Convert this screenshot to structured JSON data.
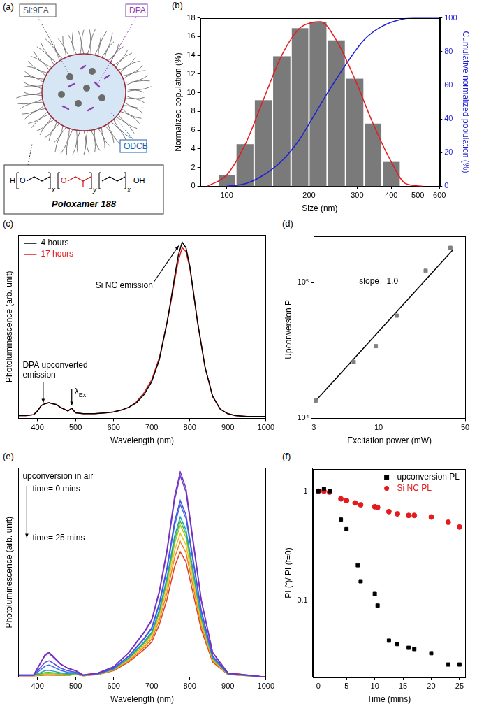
{
  "diagram": {
    "panel_label": "(a)",
    "labels": [
      "Si:9EA",
      "DPA",
      "ODCB"
    ],
    "polymer": "Poloxamer 188",
    "formula": {
      "start": "H",
      "groups": [
        {
          "atom": "O",
          "subscript": "x"
        },
        {
          "atom": "O",
          "subscript": "y"
        },
        {
          "subscript": "x"
        }
      ],
      "end": "OH"
    }
  },
  "chart_data": [
    {
      "panel_label": "(b)",
      "type": "histogram",
      "x_label": "Size (nm)",
      "y_label": "Normalized population (%)",
      "y2_label": "Cumulative normalized population (%)",
      "bins": [
        93,
        108,
        126,
        147,
        172,
        200,
        233,
        272,
        318,
        370,
        432
      ],
      "values": [
        1.2,
        4.5,
        9.2,
        13.9,
        16.9,
        17.6,
        15.6,
        11.5,
        6.7,
        2.6
      ],
      "color": "#7a7a7a",
      "series": [
        {
          "type": "line",
          "color": "#e41a1c",
          "x": [
            85,
            100,
            117,
            136,
            159,
            185,
            205,
            220,
            252,
            294,
            343,
            400,
            450,
            520
          ],
          "values": [
            0,
            1.2,
            4.5,
            9.2,
            14,
            16.9,
            17.5,
            17.6,
            15.6,
            11.5,
            6.7,
            2.6,
            0.3,
            0
          ]
        },
        {
          "type": "line",
          "color": "#1f1fd6",
          "axis": "y2",
          "x": [
            100,
            117,
            136,
            159,
            185,
            200,
            233,
            272,
            318,
            370,
            432,
            500,
            600
          ],
          "values": [
            0,
            1.5,
            6.5,
            15,
            28,
            37,
            55,
            72,
            87,
            95,
            99,
            100,
            100
          ]
        }
      ],
      "log": "x",
      "xlim": [
        80,
        600
      ],
      "xticks": [
        100,
        200,
        300,
        400,
        500,
        600
      ],
      "ylim": [
        0,
        18
      ],
      "yticks": [
        0,
        2,
        4,
        6,
        8,
        10,
        12,
        14,
        16,
        18
      ],
      "y2lim": [
        0,
        100
      ],
      "y2ticks": [
        0,
        20,
        40,
        60,
        80,
        100
      ],
      "grid": false
    },
    {
      "panel_label": "(c)",
      "type": "line",
      "x_label": "Wavelength (nm)",
      "y_label": "Photoluminescence (arb. unit)",
      "x": [
        350,
        370,
        390,
        400,
        410,
        420,
        430,
        440,
        450,
        460,
        470,
        480,
        490,
        500,
        520,
        550,
        580,
        600,
        620,
        640,
        660,
        680,
        700,
        720,
        740,
        750,
        760,
        770,
        780,
        790,
        800,
        810,
        820,
        840,
        860,
        880,
        900,
        920,
        950,
        1000
      ],
      "series": [
        {
          "name": "4 hours",
          "color": "#000000",
          "values": [
            1.5,
            1.5,
            2,
            4,
            7,
            8,
            8.5,
            8,
            7.5,
            6,
            5,
            4,
            5.5,
            3,
            2.5,
            2.5,
            3,
            3.5,
            4.5,
            6,
            8.5,
            13,
            20,
            32,
            52,
            64,
            77,
            89,
            96,
            93,
            83,
            68,
            53,
            28,
            12,
            5,
            2.5,
            1.5,
            1,
            1
          ]
        },
        {
          "name": "17 hours",
          "color": "#e41a1c",
          "values": [
            1.5,
            1.5,
            2,
            4,
            7,
            8,
            8.5,
            8,
            7.5,
            6,
            5,
            4,
            5.5,
            3,
            2.5,
            2.5,
            3,
            3.5,
            4.5,
            6,
            9,
            14,
            21,
            33,
            52,
            63,
            75,
            86,
            93,
            91,
            82,
            68,
            53,
            28,
            12,
            5,
            2.5,
            1.5,
            1,
            1
          ]
        }
      ],
      "xlim": [
        350,
        1000
      ],
      "xticks": [
        400,
        500,
        600,
        700,
        800,
        900,
        1000
      ],
      "ylim": [
        0,
        100
      ],
      "tick_labels": "x",
      "grid": false,
      "legend": "upper left",
      "annotations": [
        {
          "text": "Si NC emission",
          "x": 780
        },
        {
          "text": "DPA upconverted emission",
          "x": 415
        },
        {
          "text": "λEx",
          "x": 490
        }
      ]
    },
    {
      "panel_label": "(d)",
      "type": "scatter",
      "x_label": "Excitation power (mW)",
      "y_label": "Upconversion PL",
      "series": [
        {
          "type": "scatter",
          "marker": "square",
          "color": "#808080",
          "x": [
            3.1,
            6.3,
            9.5,
            14,
            24,
            38
          ],
          "values": [
            13500,
            26000,
            34000,
            57000,
            122000,
            180000
          ]
        },
        {
          "type": "line",
          "line_style": "solid",
          "color": "#000000",
          "x": [
            3,
            40
          ],
          "values": [
            13000,
            175000
          ]
        }
      ],
      "log": true,
      "xlim": [
        3,
        50
      ],
      "xticks": [
        3,
        10,
        50
      ],
      "ylim": [
        10000,
        220000
      ],
      "yticks": [
        {
          "value": 10000,
          "label": "10⁴"
        },
        {
          "value": 100000,
          "label": "10⁵"
        }
      ],
      "grid": false,
      "annotations": [
        {
          "text": "slope= 1.0"
        }
      ]
    },
    {
      "panel_label": "(e)",
      "type": "line",
      "x_label": "Wavelength (nm)",
      "y_label": "Photoluminescence (arb. unit)",
      "x": [
        350,
        390,
        410,
        420,
        430,
        440,
        460,
        480,
        500,
        520,
        560,
        600,
        640,
        660,
        680,
        700,
        720,
        740,
        760,
        775,
        790,
        810,
        830,
        860,
        900,
        1000
      ],
      "series": [
        {
          "color": "#7b2fbe",
          "values": [
            1,
            1,
            7.6,
            10.9,
            12,
            10.4,
            6.5,
            4.3,
            3.1,
            1,
            2,
            5,
            12,
            17,
            22,
            28,
            42,
            62,
            88,
            100,
            92,
            65,
            38,
            12,
            2,
            0
          ]
        },
        {
          "color": "#6a3fd0",
          "values": [
            1,
            1,
            7.3,
            10.5,
            11.5,
            9.9,
            6.3,
            4.2,
            3.1,
            1,
            2,
            4.9,
            11.8,
            16.7,
            21.6,
            27.4,
            41.2,
            60.8,
            86.2,
            98,
            90.2,
            63.7,
            37.2,
            11.8,
            2,
            0
          ]
        },
        {
          "color": "#4f4fe0",
          "values": [
            0.9,
            0.9,
            5.1,
            7.2,
            7.9,
            6.9,
            4.4,
            3,
            2.4,
            0.9,
            1.7,
            4.3,
            10.3,
            14.6,
            18.9,
            24.1,
            36.1,
            53.3,
            75.7,
            86,
            79.1,
            55.9,
            32.7,
            10.3,
            1.7,
            0
          ]
        },
        {
          "color": "#3a6ee8",
          "values": [
            0.8,
            0.8,
            3.8,
            5.3,
            5.8,
            5.1,
            3.3,
            2.3,
            2.2,
            0.8,
            1.7,
            4.2,
            10.1,
            14.3,
            18.5,
            23.5,
            35.3,
            52.1,
            73.9,
            84,
            77.3,
            54.6,
            31.9,
            10.1,
            1.7,
            0
          ]
        },
        {
          "color": "#20a0c0",
          "values": [
            0.8,
            0.8,
            2.3,
            3.1,
            3.3,
            2.9,
            2.1,
            1.6,
            1.9,
            0.8,
            1.6,
            3.9,
            9.4,
            13.3,
            17.2,
            21.8,
            32.8,
            48.4,
            68.6,
            78,
            71.8,
            50.7,
            29.6,
            9.4,
            1.6,
            0
          ]
        },
        {
          "color": "#40c040",
          "values": [
            0.8,
            0.8,
            1.7,
            2.2,
            2.3,
            2.1,
            1.6,
            1.3,
            1.7,
            0.8,
            1.5,
            3.8,
            9.1,
            12.9,
            16.7,
            21.3,
            31.9,
            47.1,
            66.9,
            76,
            69.9,
            49.4,
            28.9,
            9.1,
            1.5,
            0
          ]
        },
        {
          "color": "#a8cc20",
          "values": [
            0.7,
            0.7,
            1.3,
            1.6,
            1.7,
            1.6,
            1.2,
            1,
            1.6,
            0.7,
            1.5,
            3.7,
            8.9,
            12.6,
            16.3,
            20.7,
            31.1,
            45.9,
            65.1,
            74,
            68.1,
            48.1,
            28.1,
            8.9,
            1.5,
            0
          ]
        },
        {
          "color": "#f0c020",
          "values": [
            0.7,
            0.7,
            1.1,
            1.2,
            1.3,
            1.2,
            1,
            0.9,
            1.5,
            0.7,
            1.4,
            3.5,
            8.4,
            11.9,
            15.4,
            19.6,
            29.4,
            43.4,
            61.6,
            70,
            64.4,
            45.5,
            26.6,
            8.4,
            1.4,
            0
          ]
        },
        {
          "color": "#f08020",
          "values": [
            0.7,
            0.7,
            0.9,
            1.1,
            1.1,
            1,
            0.9,
            0.8,
            1.4,
            0.7,
            1.3,
            3.3,
            7.9,
            11.2,
            14.5,
            18.5,
            27.7,
            40.9,
            58.1,
            66,
            60.7,
            42.9,
            25.1,
            7.9,
            1.3,
            0
          ]
        },
        {
          "color": "#e04020",
          "values": [
            0.6,
            0.6,
            0.8,
            0.9,
            0.9,
            0.9,
            0.8,
            0.7,
            1.3,
            0.6,
            1.2,
            3.1,
            7.3,
            10.4,
            13.4,
            17.1,
            25.6,
            37.8,
            53.7,
            61,
            56.1,
            39.7,
            23.2,
            7.3,
            1.2,
            0
          ]
        }
      ],
      "xlim": [
        350,
        1000
      ],
      "xticks": [
        400,
        500,
        600,
        700,
        800,
        900,
        1000
      ],
      "ylim": [
        0,
        102
      ],
      "tick_labels": "x",
      "grid": false,
      "annotations": [
        "upconversion in air",
        "time= 0 mins",
        "time= 25 mins"
      ]
    },
    {
      "panel_label": "(f)",
      "type": "scatter",
      "x_label": "Time (mins)",
      "y_label": "PL(t)/ PL(t=0)",
      "series": [
        {
          "name": "upconversion PL",
          "color": "#000000",
          "marker": "square",
          "x": [
            0,
            1,
            2,
            4,
            5,
            7,
            7.5,
            10,
            10.5,
            12.5,
            14,
            16,
            17,
            20,
            23,
            25
          ],
          "values": [
            1,
            1.05,
            1,
            0.55,
            0.45,
            0.21,
            0.15,
            0.115,
            0.09,
            0.043,
            0.04,
            0.037,
            0.036,
            0.033,
            0.026,
            0.026
          ]
        },
        {
          "name": "Si NC PL",
          "color": "#e41a1c",
          "marker": "circle",
          "x": [
            0,
            1,
            2,
            4,
            5,
            6.5,
            7.5,
            10,
            10.5,
            12.5,
            14,
            16,
            17,
            20,
            23,
            25
          ],
          "values": [
            1,
            1,
            0.98,
            0.85,
            0.82,
            0.78,
            0.75,
            0.72,
            0.71,
            0.65,
            0.62,
            0.6,
            0.6,
            0.58,
            0.52,
            0.47
          ]
        }
      ],
      "log": "y",
      "xlim": [
        -1,
        26
      ],
      "xticks": [
        0,
        5,
        10,
        15,
        20,
        25
      ],
      "ylim": [
        0.02,
        1.6
      ],
      "yticks": [
        0.1,
        1
      ],
      "grid": false,
      "legend": "upper right"
    }
  ]
}
